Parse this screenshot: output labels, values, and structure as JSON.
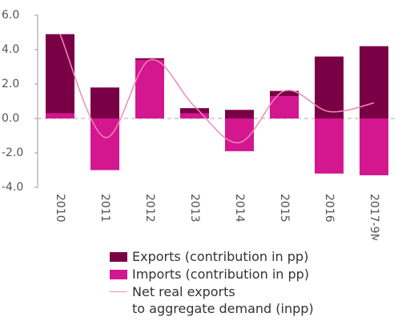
{
  "chart_data": {
    "type": "stacked-bar-line",
    "categories": [
      "2010",
      "2011",
      "2012",
      "2013",
      "2014",
      "2015",
      "2016",
      "2017-9M"
    ],
    "series": [
      {
        "name": "Exports (contribution in pp)",
        "color": "#7a0046",
        "values": [
          4.6,
          1.8,
          0.1,
          0.3,
          0.5,
          0.3,
          3.6,
          4.2
        ]
      },
      {
        "name": "Imports (contribution in pp)",
        "color": "#d4168f",
        "values": [
          0.3,
          -3.0,
          3.4,
          0.3,
          -1.9,
          1.3,
          -3.2,
          -3.3
        ]
      },
      {
        "name": "Net real exports\nto aggregate demand (inpp)",
        "color": "#ee8ab8",
        "type": "line",
        "values": [
          4.9,
          -1.1,
          3.4,
          0.7,
          -1.4,
          1.6,
          0.4,
          0.9
        ]
      }
    ],
    "ylim": [
      -4,
      6
    ],
    "yticks": [
      {
        "value": -4,
        "label": "-4.0"
      },
      {
        "value": -2,
        "label": "-2.0"
      },
      {
        "value": 0,
        "label": "0.0"
      },
      {
        "value": 2,
        "label": "2.0"
      },
      {
        "value": 4,
        "label": "4.0"
      },
      {
        "value": 6,
        "label": "6.0"
      }
    ]
  }
}
